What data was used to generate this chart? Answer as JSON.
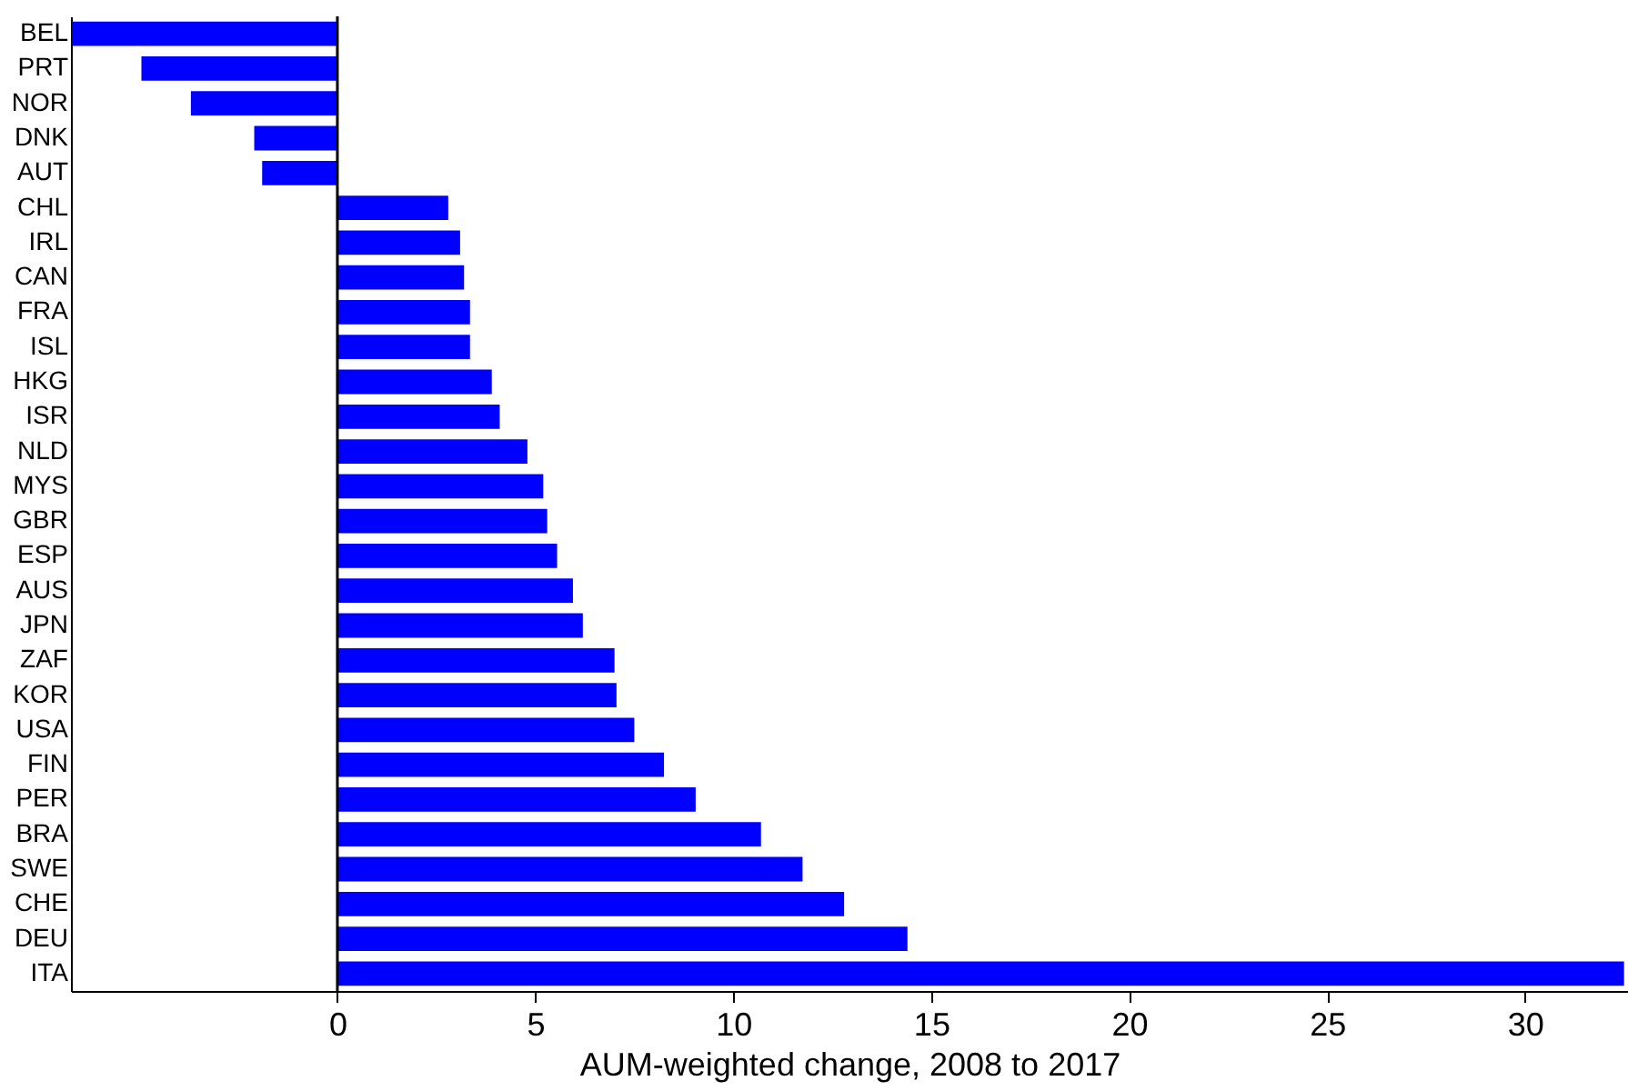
{
  "chart_data": {
    "type": "bar",
    "orientation": "horizontal",
    "xlabel": "AUM-weighted change, 2008 to 2017",
    "categories": [
      "BEL",
      "PRT",
      "NOR",
      "DNK",
      "AUT",
      "CHL",
      "IRL",
      "CAN",
      "FRA",
      "ISL",
      "HKG",
      "ISR",
      "NLD",
      "MYS",
      "GBR",
      "ESP",
      "AUS",
      "JPN",
      "ZAF",
      "KOR",
      "USA",
      "FIN",
      "PER",
      "BRA",
      "SWE",
      "CHE",
      "DEU",
      "ITA"
    ],
    "values": [
      -6.7,
      -4.95,
      -3.7,
      -2.1,
      -1.9,
      2.8,
      3.1,
      3.2,
      3.35,
      3.35,
      3.9,
      4.1,
      4.8,
      5.2,
      5.3,
      5.55,
      5.95,
      6.2,
      7.0,
      7.05,
      7.5,
      8.25,
      9.05,
      10.7,
      11.75,
      12.8,
      14.4,
      32.5
    ],
    "color": "#0000ff",
    "xlim": [
      -6.73,
      32.6
    ],
    "xticks": [
      0,
      5,
      10,
      15,
      20,
      25,
      30
    ],
    "ref_lines": [
      {
        "axis": "x",
        "value": 0,
        "color": "#000000"
      }
    ],
    "grid": false
  }
}
